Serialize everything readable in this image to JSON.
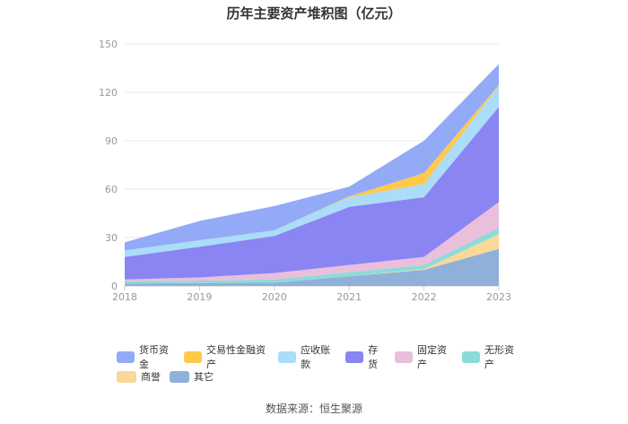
{
  "chart_data": {
    "type": "area",
    "title": "历年主要资产堆积图（亿元）",
    "categories": [
      "2018",
      "2019",
      "2020",
      "2021",
      "2022",
      "2023"
    ],
    "ylim": [
      0,
      150
    ],
    "yticks": [
      0,
      30,
      60,
      90,
      120,
      150
    ],
    "grid": true,
    "legend_position": "bottom",
    "series": [
      {
        "name": "其它",
        "color": "#8fb0d9",
        "values": [
          1.5,
          1.8,
          2,
          6,
          10,
          23
        ]
      },
      {
        "name": "商誉",
        "color": "#fad898",
        "values": [
          0,
          0,
          0,
          0,
          0.5,
          9
        ]
      },
      {
        "name": "无形资产",
        "color": "#8ddbd9",
        "values": [
          1.5,
          1.5,
          2,
          2.5,
          2.5,
          4
        ]
      },
      {
        "name": "固定资产",
        "color": "#e9bfdc",
        "values": [
          1,
          2,
          4,
          4.5,
          5,
          16
        ]
      },
      {
        "name": "存货",
        "color": "#8a85f2",
        "values": [
          14,
          19,
          23,
          36,
          37,
          59
        ]
      },
      {
        "name": "应收账款",
        "color": "#a9ddf8",
        "values": [
          4,
          4,
          3.5,
          6,
          8,
          13
        ]
      },
      {
        "name": "交易性金融资产",
        "color": "#ffc94d",
        "values": [
          0,
          0,
          0,
          0.5,
          7,
          0.5
        ]
      },
      {
        "name": "货币资金",
        "color": "#93aaf7",
        "values": [
          5,
          12,
          15,
          6,
          20,
          13
        ]
      }
    ]
  },
  "legend_order": [
    "货币资金",
    "交易性金融资产",
    "应收账款",
    "存货",
    "固定资产",
    "无形资产",
    "商誉",
    "其它"
  ],
  "source_text": "数据来源：恒生聚源"
}
